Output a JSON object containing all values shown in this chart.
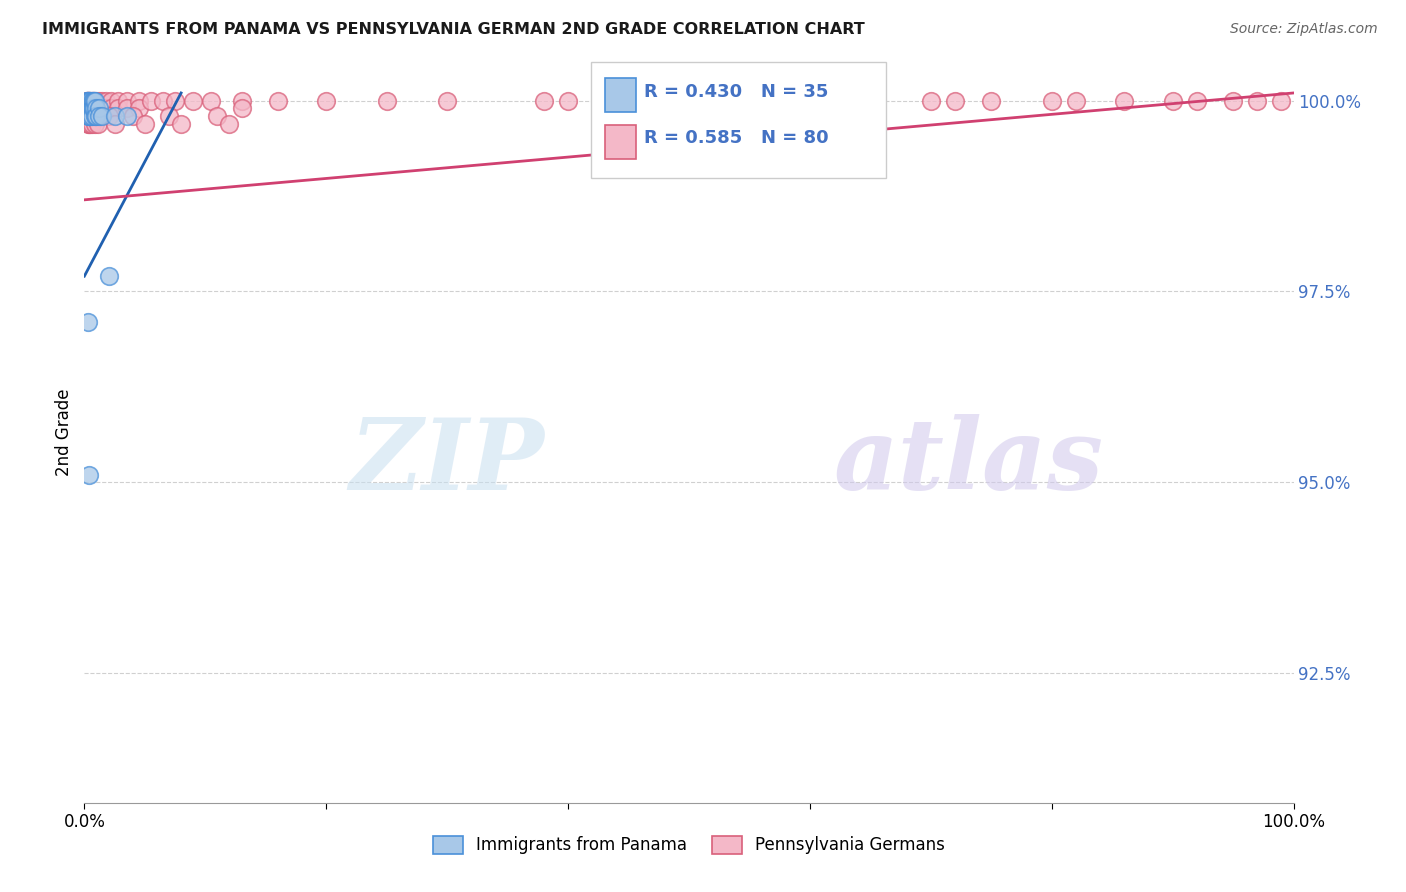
{
  "title": "IMMIGRANTS FROM PANAMA VS PENNSYLVANIA GERMAN 2ND GRADE CORRELATION CHART",
  "source": "Source: ZipAtlas.com",
  "ylabel": "2nd Grade",
  "xlim": [
    0.0,
    1.0
  ],
  "ylim": [
    0.908,
    1.005
  ],
  "yticks": [
    0.925,
    0.95,
    0.975,
    1.0
  ],
  "ytick_labels": [
    "92.5%",
    "95.0%",
    "97.5%",
    "100.0%"
  ],
  "blue_color": "#a8c8e8",
  "blue_edge_color": "#4a90d9",
  "pink_color": "#f4b8c8",
  "pink_edge_color": "#d9607a",
  "blue_line_color": "#2060b0",
  "pink_line_color": "#d04070",
  "legend_text_color": "#4472c4",
  "watermark_zip_color": "#c8dff0",
  "watermark_atlas_color": "#d8c8f0",
  "background_color": "#ffffff",
  "grid_color": "#d0d0d0",
  "blue_scatter_x": [
    0.002,
    0.002,
    0.002,
    0.003,
    0.003,
    0.003,
    0.003,
    0.004,
    0.004,
    0.004,
    0.004,
    0.004,
    0.005,
    0.005,
    0.005,
    0.005,
    0.006,
    0.006,
    0.006,
    0.007,
    0.007,
    0.008,
    0.008,
    0.009,
    0.009,
    0.01,
    0.01,
    0.012,
    0.012,
    0.015,
    0.02,
    0.025,
    0.035,
    0.003,
    0.004
  ],
  "blue_scatter_y": [
    1.0,
    1.0,
    0.999,
    1.0,
    0.999,
    0.999,
    0.998,
    1.0,
    1.0,
    0.999,
    0.998,
    0.998,
    1.0,
    0.999,
    0.999,
    0.998,
    1.0,
    0.999,
    0.998,
    1.0,
    0.999,
    1.0,
    0.999,
    1.0,
    0.998,
    0.999,
    0.998,
    0.999,
    0.998,
    0.998,
    0.977,
    0.998,
    0.998,
    0.971,
    0.951
  ],
  "pink_scatter_x": [
    0.002,
    0.002,
    0.002,
    0.003,
    0.003,
    0.003,
    0.003,
    0.003,
    0.004,
    0.004,
    0.004,
    0.004,
    0.004,
    0.005,
    0.005,
    0.005,
    0.005,
    0.006,
    0.006,
    0.006,
    0.007,
    0.007,
    0.007,
    0.008,
    0.008,
    0.01,
    0.01,
    0.012,
    0.012,
    0.012,
    0.015,
    0.015,
    0.018,
    0.018,
    0.022,
    0.022,
    0.028,
    0.028,
    0.035,
    0.035,
    0.045,
    0.045,
    0.055,
    0.065,
    0.075,
    0.09,
    0.105,
    0.13,
    0.13,
    0.16,
    0.2,
    0.25,
    0.3,
    0.38,
    0.4,
    0.45,
    0.5,
    0.55,
    0.56,
    0.6,
    0.65,
    0.7,
    0.72,
    0.75,
    0.8,
    0.82,
    0.86,
    0.9,
    0.92,
    0.95,
    0.97,
    0.99,
    0.004,
    0.006,
    0.009,
    0.011,
    0.02,
    0.025,
    0.04,
    0.05,
    0.07,
    0.08,
    0.11,
    0.12
  ],
  "pink_scatter_y": [
    1.0,
    1.0,
    0.999,
    1.0,
    1.0,
    0.999,
    0.998,
    0.997,
    1.0,
    0.999,
    0.999,
    0.998,
    0.997,
    1.0,
    0.999,
    0.998,
    0.997,
    1.0,
    0.999,
    0.998,
    1.0,
    0.999,
    0.998,
    1.0,
    0.999,
    1.0,
    0.999,
    1.0,
    0.999,
    0.998,
    1.0,
    0.999,
    1.0,
    0.999,
    1.0,
    0.999,
    1.0,
    0.999,
    1.0,
    0.999,
    1.0,
    0.999,
    1.0,
    1.0,
    1.0,
    1.0,
    1.0,
    1.0,
    0.999,
    1.0,
    1.0,
    1.0,
    1.0,
    1.0,
    1.0,
    1.0,
    1.0,
    1.0,
    1.0,
    1.0,
    1.0,
    1.0,
    1.0,
    1.0,
    1.0,
    1.0,
    1.0,
    1.0,
    1.0,
    1.0,
    1.0,
    1.0,
    0.998,
    0.997,
    0.997,
    0.997,
    0.998,
    0.997,
    0.998,
    0.997,
    0.998,
    0.997,
    0.998,
    0.997
  ],
  "blue_trendline_x": [
    0.0,
    0.08
  ],
  "blue_trendline_y": [
    0.977,
    1.001
  ],
  "pink_trendline_x": [
    0.0,
    1.0
  ],
  "pink_trendline_y": [
    0.987,
    1.001
  ]
}
